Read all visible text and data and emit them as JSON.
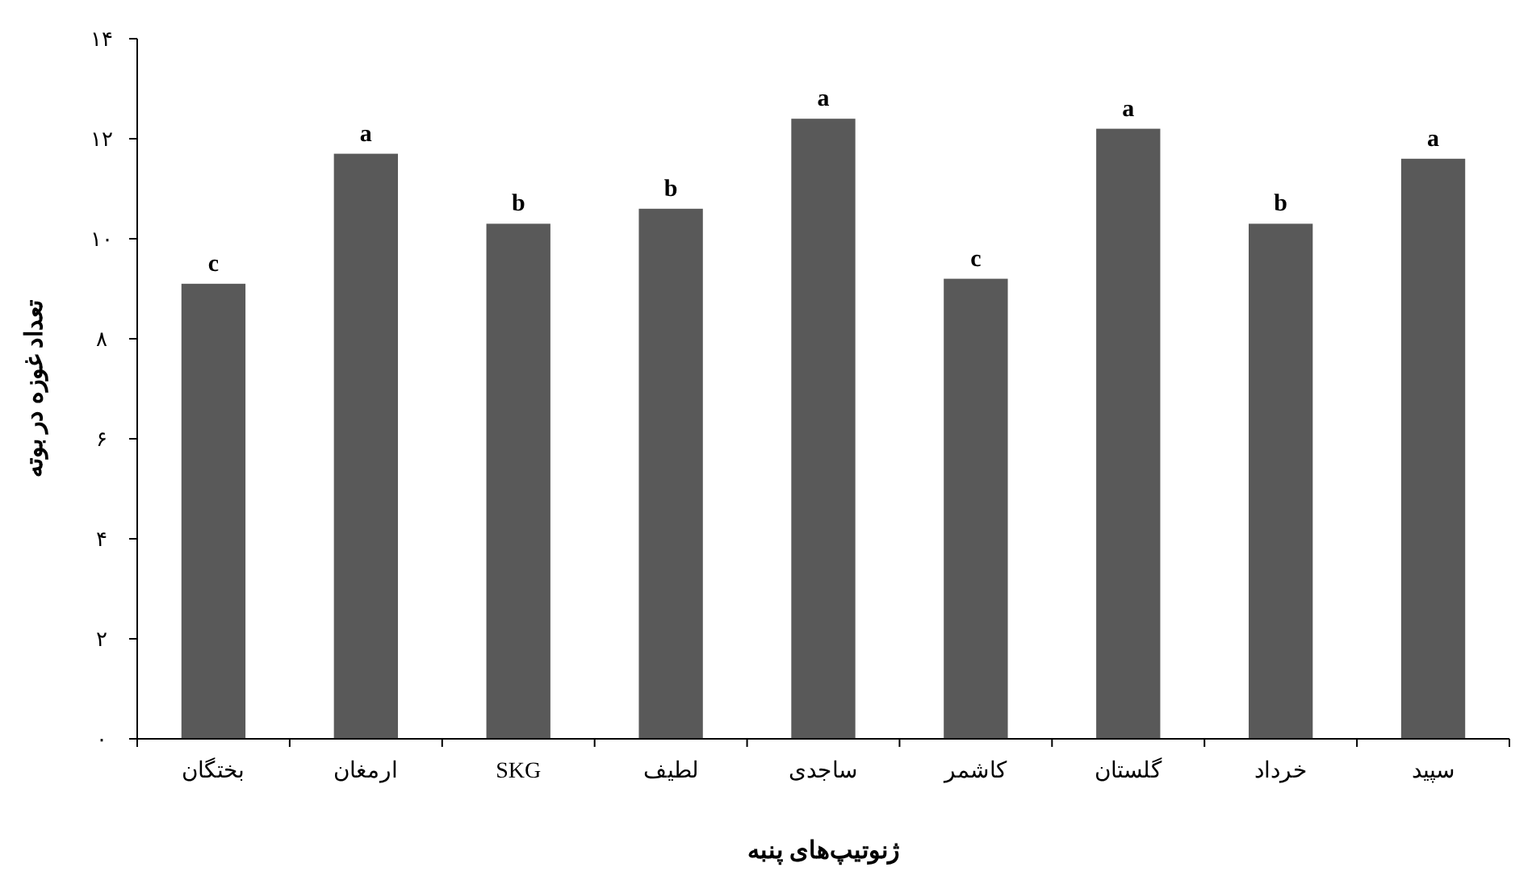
{
  "chart_data": {
    "type": "bar",
    "xlabel": "ژنوتیپ‌های پنبه",
    "ylabel": "تعداد غوزه در بوته",
    "categories": [
      "بختگان",
      "ارمغان",
      "SKG",
      "لطیف",
      "ساجدی",
      "کاشمر",
      "گلستان",
      "خرداد",
      "سپید"
    ],
    "values": [
      9.1,
      11.7,
      10.3,
      10.6,
      12.4,
      9.2,
      12.2,
      10.3,
      11.6
    ],
    "color": "#595959",
    "ylim": [
      0,
      14
    ],
    "yticks": [
      {
        "value": 0,
        "label": "۰"
      },
      {
        "value": 2,
        "label": "۲"
      },
      {
        "value": 4,
        "label": "۴"
      },
      {
        "value": 6,
        "label": "۶"
      },
      {
        "value": 8,
        "label": "۸"
      },
      {
        "value": 10,
        "label": "۱۰"
      },
      {
        "value": 12,
        "label": "۱۲"
      },
      {
        "value": 14,
        "label": "۱۴"
      }
    ],
    "annotations": [
      {
        "text": "c",
        "x": "بختگان",
        "y": 9.1
      },
      {
        "text": "a",
        "x": "ارمغان",
        "y": 11.7
      },
      {
        "text": "b",
        "x": "SKG",
        "y": 10.3
      },
      {
        "text": "b",
        "x": "لطیف",
        "y": 10.6
      },
      {
        "text": "a",
        "x": "ساجدی",
        "y": 12.4
      },
      {
        "text": "c",
        "x": "کاشمر",
        "y": 9.2
      },
      {
        "text": "a",
        "x": "گلستان",
        "y": 12.2
      },
      {
        "text": "b",
        "x": "خرداد",
        "y": 10.3
      },
      {
        "text": "a",
        "x": "سپید",
        "y": 11.6
      }
    ]
  }
}
